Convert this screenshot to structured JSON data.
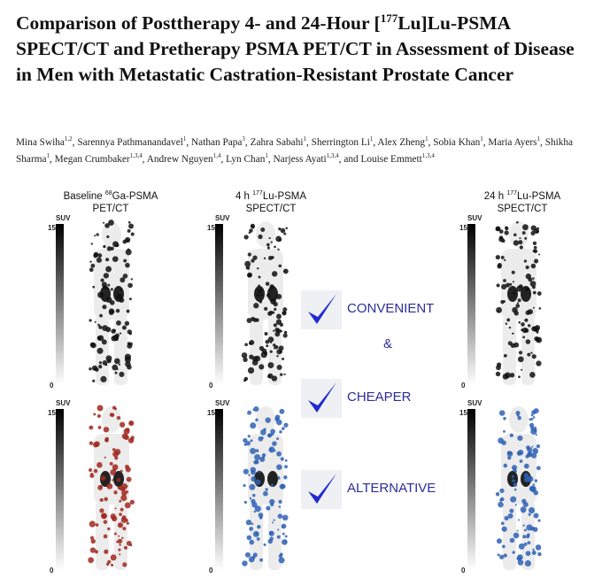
{
  "title": {
    "before": "Comparison of Posttherapy 4- and 24-Hour [",
    "superscript": "177",
    "after": "Lu]Lu-PSMA SPECT/CT and Pretherapy PSMA PET/CT in Assessment of Disease in Men with Metastatic Castration-Resistant Prostate Cancer"
  },
  "authors": [
    {
      "name": "Mina Swiha",
      "affiliations": "1,2",
      "sep": ", "
    },
    {
      "name": "Sarennya Pathmanandavel",
      "affiliations": "1",
      "sep": ", "
    },
    {
      "name": "Nathan Papa",
      "affiliations": "3",
      "sep": ", "
    },
    {
      "name": "Zahra Sabahi",
      "affiliations": "1",
      "sep": ", "
    },
    {
      "name": "Sherrington Li",
      "affiliations": "1",
      "sep": ", "
    },
    {
      "name": "Alex Zheng",
      "affiliations": "1",
      "sep": ", "
    },
    {
      "name": "Sobia Khan",
      "affiliations": "1",
      "sep": ", "
    },
    {
      "name": "Maria Ayers",
      "affiliations": "1",
      "sep": ", "
    },
    {
      "name": "Shikha Sharma",
      "affiliations": "1",
      "sep": ", "
    },
    {
      "name": "Megan Crumbaker",
      "affiliations": "1,3,4",
      "sep": ", "
    },
    {
      "name": "Andrew Nguyen",
      "affiliations": "1,4",
      "sep": ", "
    },
    {
      "name": "Lyn Chan",
      "affiliations": "1",
      "sep": ", "
    },
    {
      "name": "Narjess Ayati",
      "affiliations": "1,3,4",
      "sep": ", and "
    },
    {
      "name": "Louise Emmett",
      "affiliations": "1,3,4"
    }
  ],
  "panels": [
    {
      "prefix": "Baseline ",
      "isotope": "68",
      "tracer": "Ga-PSMA",
      "modality": "PET/CT"
    },
    {
      "prefix": "4 h ",
      "isotope": "177",
      "tracer": "Lu-PSMA",
      "modality": "SPECT/CT"
    },
    {
      "prefix": "24 h ",
      "isotope": "177",
      "tracer": "Lu-PSMA",
      "modality": "SPECT/CT"
    }
  ],
  "scales": [
    {
      "unit": "SUV",
      "max": 15,
      "min": 0
    },
    {
      "unit": "SUV",
      "max": 15,
      "min": 0
    },
    {
      "unit": "SUV",
      "max": 15,
      "min": 0
    },
    {
      "unit": "SUV",
      "max": 15,
      "min": 0
    },
    {
      "unit": "SUV",
      "max": 15,
      "min": 0
    },
    {
      "unit": "SUV",
      "max": 15,
      "min": 0
    }
  ],
  "benefits": {
    "items": [
      "CONVENIENT",
      "CHEAPER",
      "ALTERNATIVE"
    ],
    "conjunction": "&"
  }
}
